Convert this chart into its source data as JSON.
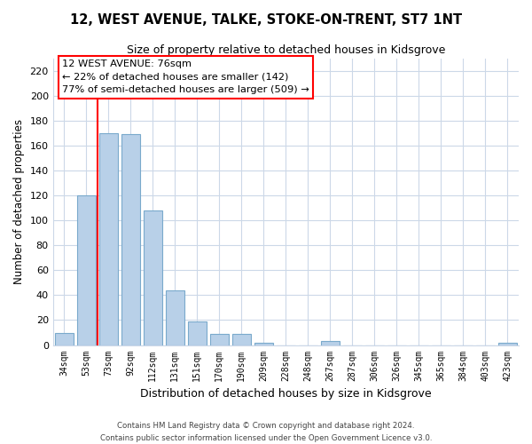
{
  "title": "12, WEST AVENUE, TALKE, STOKE-ON-TRENT, ST7 1NT",
  "subtitle": "Size of property relative to detached houses in Kidsgrove",
  "xlabel": "Distribution of detached houses by size in Kidsgrove",
  "ylabel": "Number of detached properties",
  "bar_labels": [
    "34sqm",
    "53sqm",
    "73sqm",
    "92sqm",
    "112sqm",
    "131sqm",
    "151sqm",
    "170sqm",
    "190sqm",
    "209sqm",
    "228sqm",
    "248sqm",
    "267sqm",
    "287sqm",
    "306sqm",
    "326sqm",
    "345sqm",
    "365sqm",
    "384sqm",
    "403sqm",
    "423sqm"
  ],
  "bar_values": [
    10,
    120,
    170,
    169,
    108,
    44,
    19,
    9,
    9,
    2,
    0,
    0,
    3,
    0,
    0,
    0,
    0,
    0,
    0,
    0,
    2
  ],
  "bar_color": "#b8d0e8",
  "bar_edge_color": "#7aaacc",
  "property_line_color": "red",
  "ylim": [
    0,
    230
  ],
  "yticks": [
    0,
    20,
    40,
    60,
    80,
    100,
    120,
    140,
    160,
    180,
    200,
    220
  ],
  "annotation_title": "12 WEST AVENUE: 76sqm",
  "annotation_line1": "← 22% of detached houses are smaller (142)",
  "annotation_line2": "77% of semi-detached houses are larger (509) →",
  "footer_line1": "Contains HM Land Registry data © Crown copyright and database right 2024.",
  "footer_line2": "Contains public sector information licensed under the Open Government Licence v3.0.",
  "bg_color": "#ffffff",
  "grid_color": "#ccd8e8"
}
